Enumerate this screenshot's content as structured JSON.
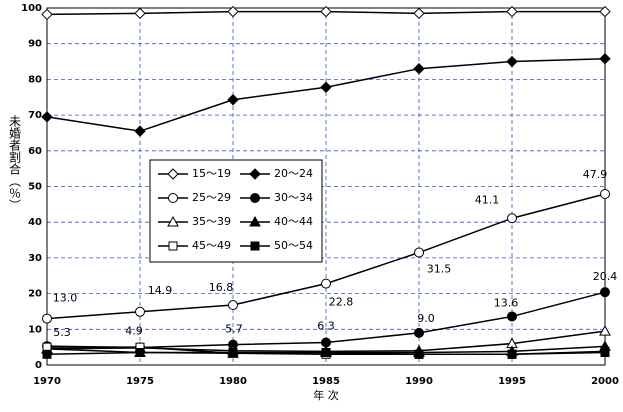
{
  "chart_data": {
    "type": "line",
    "x_label": "年 次",
    "y_label": "未婚者割合（％）",
    "x": [
      1970,
      1975,
      1980,
      1985,
      1990,
      1995,
      2000
    ],
    "xlim": [
      1970,
      2000
    ],
    "xticks": [
      1970,
      1975,
      1980,
      1985,
      1990,
      1995,
      2000
    ],
    "ylim": [
      0,
      100
    ],
    "yticks": [
      0,
      10,
      20,
      30,
      40,
      50,
      60,
      70,
      80,
      90,
      100
    ],
    "grid": true,
    "series": [
      {
        "name": "15～19",
        "color": "#000000",
        "marker": "diamond",
        "filled": false,
        "values": [
          98.2,
          98.5,
          99.0,
          99.0,
          98.5,
          99.0,
          99.0
        ]
      },
      {
        "name": "20～24",
        "color": "#000000",
        "marker": "diamond",
        "filled": true,
        "values": [
          69.5,
          65.5,
          74.3,
          77.8,
          83.0,
          85.0,
          85.8
        ]
      },
      {
        "name": "25～29",
        "color": "#000000",
        "marker": "circle",
        "filled": false,
        "values": [
          13.0,
          14.9,
          16.8,
          22.8,
          31.5,
          41.1,
          47.9
        ],
        "value_labels": [
          "13.0",
          "14.9",
          "16.8",
          "22.8",
          "31.5",
          "41.1",
          "47.9"
        ]
      },
      {
        "name": "30～34",
        "color": "#000000",
        "marker": "circle",
        "filled": true,
        "values": [
          5.3,
          4.9,
          5.7,
          6.3,
          9.0,
          13.6,
          20.4
        ],
        "value_labels": [
          "5.3",
          "4.9",
          "5.7",
          "6.3",
          "9.0",
          "13.6",
          "20.4"
        ]
      },
      {
        "name": "35～39",
        "color": "#000000",
        "marker": "triangle",
        "filled": false,
        "values": [
          4.5,
          4.8,
          4.0,
          3.8,
          4.0,
          6.0,
          9.5
        ]
      },
      {
        "name": "40～44",
        "color": "#000000",
        "marker": "triangle",
        "filled": true,
        "values": [
          4.5,
          3.5,
          3.3,
          3.5,
          3.5,
          3.8,
          5.2
        ]
      },
      {
        "name": "45～49",
        "color": "#000000",
        "marker": "square",
        "filled": false,
        "values": [
          5.0,
          5.0,
          3.3,
          3.0,
          3.0,
          3.0,
          3.8
        ]
      },
      {
        "name": "50～54",
        "color": "#000000",
        "marker": "square",
        "filled": true,
        "values": [
          3.0,
          3.5,
          3.5,
          3.5,
          3.0,
          3.0,
          3.5
        ]
      }
    ]
  }
}
